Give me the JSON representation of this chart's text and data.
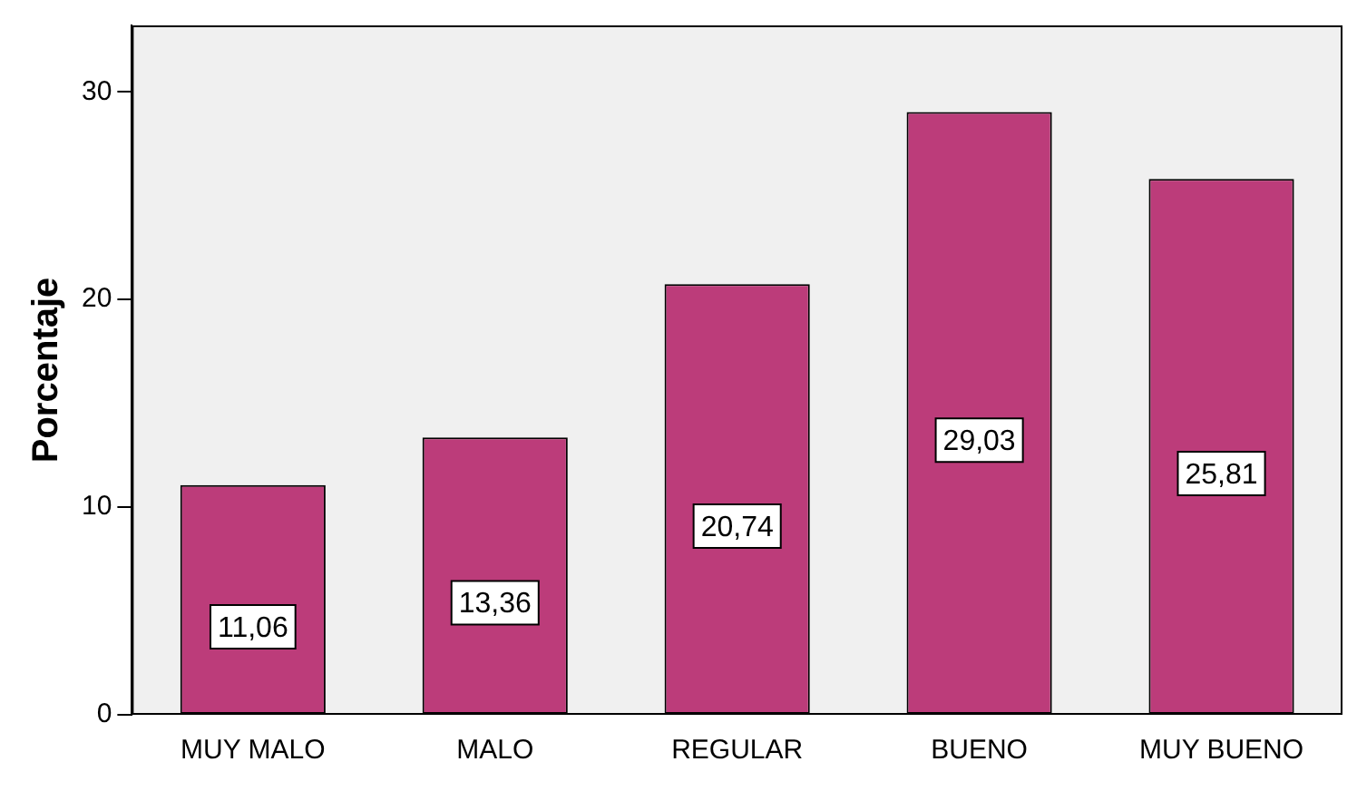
{
  "chart_data": {
    "type": "bar",
    "ylabel": "Porcentaje",
    "categories": [
      "MUY MALO",
      "MALO",
      "REGULAR",
      "BUENO",
      "MUY BUENO"
    ],
    "values": [
      11.06,
      13.36,
      20.74,
      29.03,
      25.81
    ],
    "value_labels": [
      "11,06",
      "13,36",
      "20,74",
      "29,03",
      "25,81"
    ],
    "color": "#bc3c7a",
    "ylim": [
      0,
      33.2
    ],
    "yticks": [
      0,
      10,
      20,
      30
    ],
    "grid": false,
    "legend": false
  }
}
